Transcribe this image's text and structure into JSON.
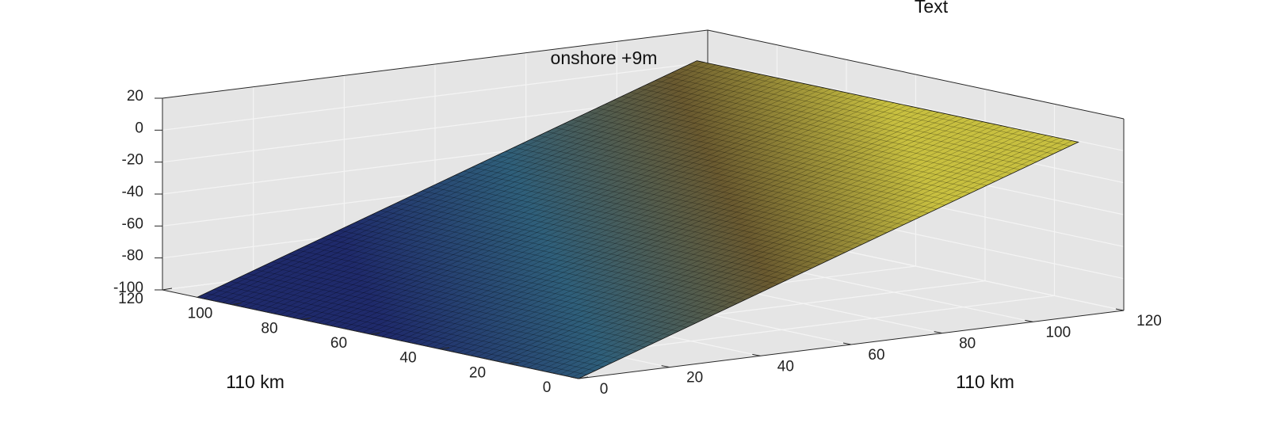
{
  "chart_data": {
    "type": "surface",
    "title": "Text",
    "annotation": "onshore +9m",
    "xlabel": "110 km",
    "ylabel": "110 km",
    "x": [
      0,
      110
    ],
    "y": [
      0,
      110
    ],
    "z": [
      [
        -100,
        9
      ],
      [
        -100,
        9
      ]
    ],
    "xlim": [
      0,
      120
    ],
    "xticks": [
      0,
      20,
      40,
      60,
      80,
      100,
      120
    ],
    "ylim": [
      0,
      120
    ],
    "yticks": [
      0,
      20,
      40,
      60,
      80,
      100,
      120
    ],
    "zlim": [
      -100,
      20
    ],
    "zticks": [
      -100,
      -80,
      -60,
      -40,
      -20,
      0,
      20
    ],
    "colors": [
      "#1f2a6b",
      "#2f5f7a",
      "#6a5a30",
      "#c8c040"
    ],
    "grid": true
  }
}
